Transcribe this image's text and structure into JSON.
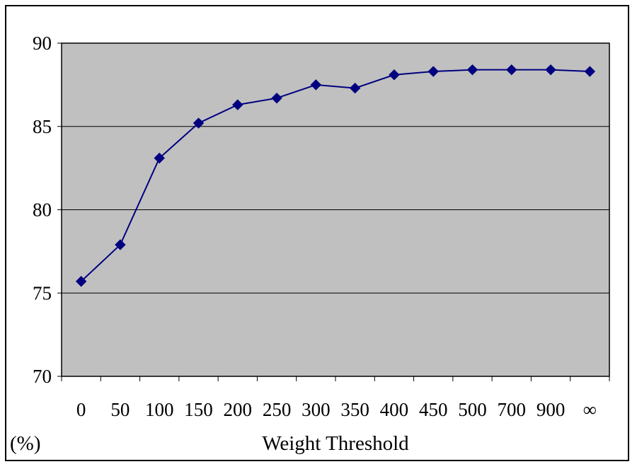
{
  "chart_data": {
    "type": "line",
    "categories": [
      "0",
      "50",
      "100",
      "150",
      "200",
      "250",
      "300",
      "350",
      "400",
      "450",
      "500",
      "700",
      "900",
      "∞"
    ],
    "series": [
      {
        "values": [
          75.7,
          77.9,
          83.1,
          85.2,
          86.3,
          86.7,
          87.5,
          87.3,
          88.1,
          88.3,
          88.4,
          88.4,
          88.4,
          88.3
        ],
        "color": "#000080",
        "marker": "diamond"
      }
    ],
    "xlabel": "Weight Threshold",
    "ylabel": "(%)",
    "ylim": [
      70,
      90
    ],
    "yticks": [
      "70",
      "75",
      "80",
      "85",
      "90"
    ],
    "grid": true,
    "plot_background": "#c0c0c0",
    "gridline_color": "#000000"
  }
}
